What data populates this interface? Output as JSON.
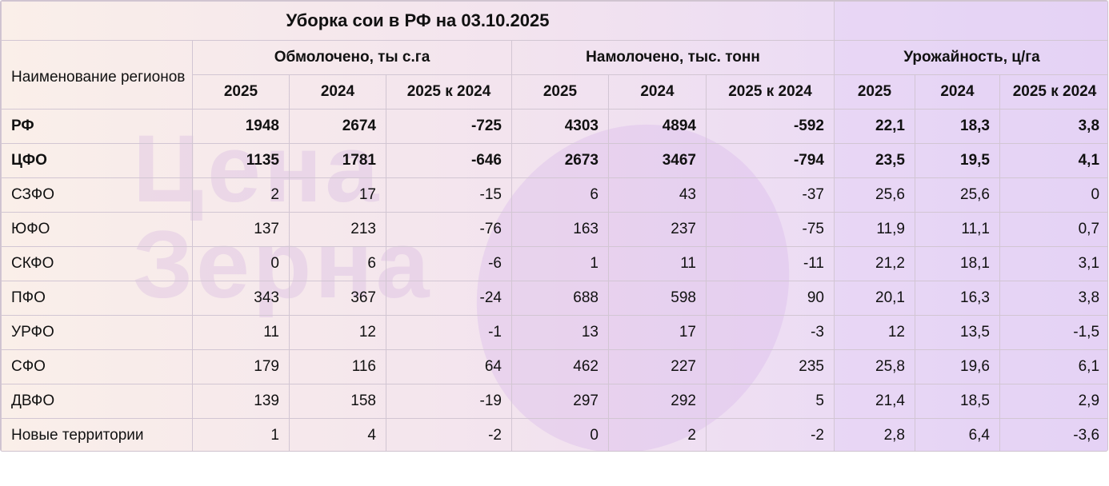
{
  "title": "Уборка сои в РФ на 03.10.2025",
  "watermark": "Цена Зерна",
  "headers": {
    "region": "Наименование регионов",
    "groups": [
      "Обмолочено, ты с.га",
      "Намолочено, тыс. тонн",
      "Урожайность, ц/га"
    ],
    "sub": [
      "2025",
      "2024",
      "2025 к 2024"
    ]
  },
  "rows": [
    {
      "name": "РФ",
      "v": [
        "1948",
        "2674",
        "-725",
        "4303",
        "4894",
        "-592",
        "22,1",
        "18,3",
        "3,8"
      ]
    },
    {
      "name": "ЦФО",
      "v": [
        "1135",
        "1781",
        "-646",
        "2673",
        "3467",
        "-794",
        "23,5",
        "19,5",
        "4,1"
      ]
    },
    {
      "name": "СЗФО",
      "v": [
        "2",
        "17",
        "-15",
        "6",
        "43",
        "-37",
        "25,6",
        "25,6",
        "0"
      ]
    },
    {
      "name": "ЮФО",
      "v": [
        "137",
        "213",
        "-76",
        "163",
        "237",
        "-75",
        "11,9",
        "11,1",
        "0,7"
      ]
    },
    {
      "name": "СКФО",
      "v": [
        "0",
        "6",
        "-6",
        "1",
        "11",
        "-11",
        "21,2",
        "18,1",
        "3,1"
      ]
    },
    {
      "name": "ПФО",
      "v": [
        "343",
        "367",
        "-24",
        "688",
        "598",
        "90",
        "20,1",
        "16,3",
        "3,8"
      ]
    },
    {
      "name": "УРФО",
      "v": [
        "11",
        "12",
        "-1",
        "13",
        "17",
        "-3",
        "12",
        "13,5",
        "-1,5"
      ]
    },
    {
      "name": "СФО",
      "v": [
        "179",
        "116",
        "64",
        "462",
        "227",
        "235",
        "25,8",
        "19,6",
        "6,1"
      ]
    },
    {
      "name": "ДВФО",
      "v": [
        "139",
        "158",
        "-19",
        "297",
        "292",
        "5",
        "21,4",
        "18,5",
        "2,9"
      ]
    },
    {
      "name": "Новые территории",
      "v": [
        "1",
        "4",
        "-2",
        "0",
        "2",
        "-2",
        "2,8",
        "6,4",
        "-3,6"
      ]
    }
  ]
}
